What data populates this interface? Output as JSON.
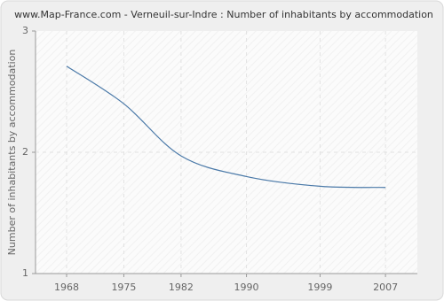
{
  "chart_data": {
    "type": "line",
    "title": "www.Map-France.com - Verneuil-sur-Indre : Number of inhabitants by accommodation",
    "y_label": "Number of inhabitants by accommodation",
    "x": [
      1968,
      1975,
      1982,
      1990,
      1999,
      2007
    ],
    "series": [
      {
        "name": "Number of inhabitants by accommodation",
        "color": "#4a79a8",
        "values": [
          2.71,
          2.4,
          1.97,
          1.8,
          1.72,
          1.71
        ]
      }
    ],
    "xlim": [
      1964.2,
      2010.9
    ],
    "xticks": [
      1968,
      1975,
      1982,
      1990,
      1999,
      2007
    ],
    "ylim": [
      1,
      3
    ],
    "yticks": [
      1,
      2,
      3
    ],
    "grid": true
  }
}
